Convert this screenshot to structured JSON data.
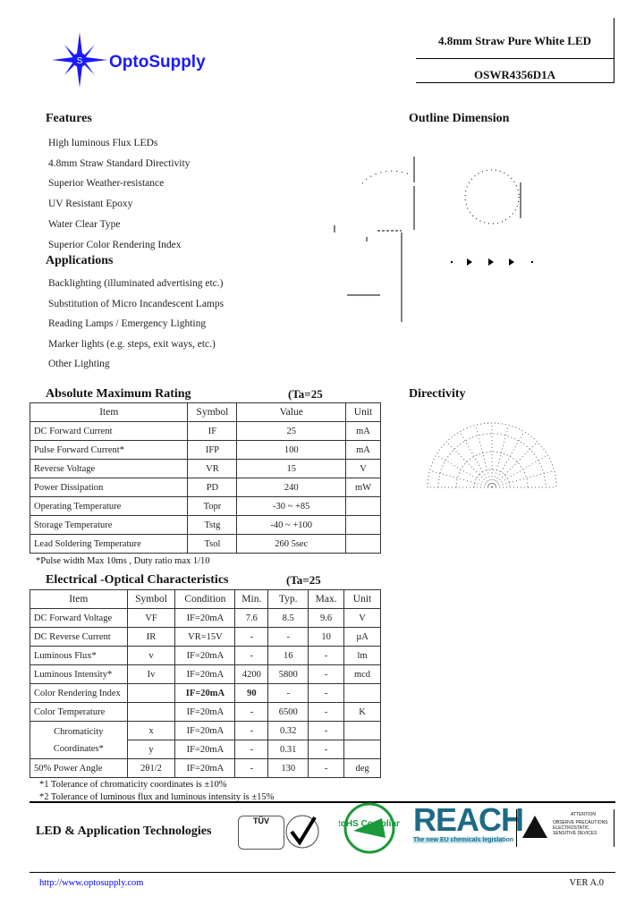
{
  "header": {
    "brand": "OptoSupply",
    "product_title": "4.8mm Straw Pure White LED",
    "part_number": "OSWR4356D1A",
    "brand_color": "#1a1aff"
  },
  "features": {
    "title": "Features",
    "items": [
      "High luminous Flux LEDs",
      "4.8mm Straw Standard Directivity",
      "Superior Weather-resistance",
      "UV Resistant Epoxy",
      "Water Clear Type",
      "Superior Color Rendering Index"
    ]
  },
  "applications": {
    "title": "Applications",
    "items": [
      "Backlighting (illuminated advertising etc.)",
      "Substitution of Micro Incandescent Lamps",
      "Reading Lamps / Emergency Lighting",
      "Marker lights (e.g. steps, exit ways, etc.)",
      "Other Lighting"
    ]
  },
  "outline": {
    "title": "Outline Dimension"
  },
  "directivity": {
    "title": "Directivity"
  },
  "amr": {
    "title": "Absolute Maximum Rating",
    "condition": "(Ta=25",
    "headers": [
      "Item",
      "Symbol",
      "Value",
      "Unit"
    ],
    "rows": [
      [
        "DC Forward Current",
        "IF",
        "25",
        "mA"
      ],
      [
        "Pulse Forward Current*",
        "IFP",
        "100",
        "mA"
      ],
      [
        "Reverse Voltage",
        "VR",
        "15",
        "V"
      ],
      [
        "Power Dissipation",
        "PD",
        "240",
        "mW"
      ],
      [
        "Operating Temperature",
        "Topr",
        "-30 ~ +85",
        ""
      ],
      [
        "Storage Temperature",
        "Tstg",
        "-40 ~ +100",
        ""
      ],
      [
        "Lead Soldering Temperature",
        "Tsol",
        "260    5sec",
        ""
      ]
    ],
    "note": "*Pulse width Max 10ms , Duty ratio max 1/10"
  },
  "eo": {
    "title": "Electrical -Optical Characteristics",
    "condition": "(Ta=25",
    "headers": [
      "Item",
      "Symbol",
      "Condition",
      "Min.",
      "Typ.",
      "Max.",
      "Unit"
    ],
    "rows": [
      [
        "DC Forward Voltage",
        "VF",
        "IF=20mA",
        "7.6",
        "8.5",
        "9.6",
        "V"
      ],
      [
        "DC Reverse Current",
        "IR",
        "VR=15V",
        "-",
        "-",
        "10",
        "µA"
      ],
      [
        "Luminous Flux*",
        "v",
        "IF=20mA",
        "-",
        "16",
        "-",
        "lm"
      ],
      [
        "Luminous Intensity*",
        "Iv",
        "IF=20mA",
        "4200",
        "5800",
        "-",
        "mcd"
      ],
      [
        "Color Rendering Index",
        "",
        "IF=20mA",
        "90",
        "-",
        "-",
        ""
      ],
      [
        "Color Temperature",
        "",
        "IF=20mA",
        "-",
        "6500",
        "-",
        "K"
      ]
    ],
    "chroma": {
      "label1": "Chromaticity",
      "label2": "Coordinates*",
      "x": [
        "x",
        "IF=20mA",
        "-",
        "0.32",
        "-",
        ""
      ],
      "y": [
        "y",
        "IF=20mA",
        "-",
        "0.31",
        "-",
        ""
      ]
    },
    "angle": [
      "50% Power Angle",
      "2θ1/2",
      "IF=20mA",
      "-",
      "130",
      "-",
      "deg"
    ],
    "notes": [
      "*1 Tolerance of chromaticity coordinates is ±10%",
      "*2 Tolerance of luminous flux and luminous intensity is ±15%"
    ]
  },
  "footer": {
    "tagline": "LED & Application Technologies",
    "url": "http://www.optosupply.com",
    "version": "VER A.0",
    "logos": {
      "tuv": "TÜV",
      "rohs": "RoHS Compliant",
      "reach": "REACH",
      "reach_sub": "The new EU chemicals legislation",
      "esd_title": "ATTENTION",
      "esd_text": "OBSERVE PRECAUTIONS ELECTROSTATIC SENSITIVE DEVICES"
    }
  }
}
